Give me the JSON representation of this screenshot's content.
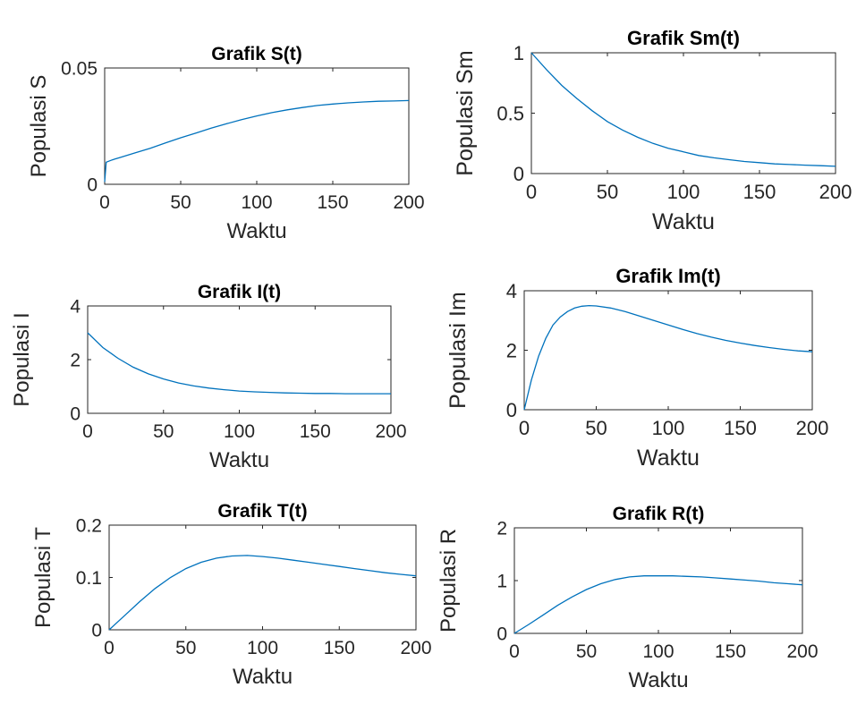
{
  "line_color": "#0072bd",
  "chart_data": [
    {
      "type": "line",
      "title": "Grafik S(t)",
      "xlabel": "Waktu",
      "ylabel": "Populasi S",
      "xlim": [
        0,
        200
      ],
      "ylim": [
        0,
        0.05
      ],
      "xticks": [
        0,
        50,
        100,
        150,
        200
      ],
      "xtick_labels": [
        "0",
        "50",
        "100",
        "150",
        "200"
      ],
      "yticks": [
        0,
        0.05
      ],
      "ytick_labels": [
        "0",
        "0.05"
      ],
      "series": [
        {
          "x": [
            0,
            1,
            5,
            10,
            20,
            30,
            40,
            50,
            60,
            70,
            80,
            90,
            100,
            110,
            120,
            130,
            140,
            150,
            160,
            170,
            180,
            190,
            200
          ],
          "values": [
            0.001,
            0.0095,
            0.0105,
            0.0115,
            0.0135,
            0.0155,
            0.0178,
            0.02,
            0.022,
            0.0241,
            0.026,
            0.0278,
            0.0294,
            0.0308,
            0.032,
            0.033,
            0.0339,
            0.0345,
            0.035,
            0.0354,
            0.0357,
            0.0358,
            0.036
          ]
        }
      ]
    },
    {
      "type": "line",
      "title": "Grafik Sm(t)",
      "xlabel": "Waktu",
      "ylabel": "Populasi Sm",
      "xlim": [
        0,
        200
      ],
      "ylim": [
        0,
        1
      ],
      "xticks": [
        0,
        50,
        100,
        150,
        200
      ],
      "xtick_labels": [
        "0",
        "50",
        "100",
        "150",
        "200"
      ],
      "yticks": [
        0,
        0.5,
        1
      ],
      "ytick_labels": [
        "0",
        "0.5",
        "1"
      ],
      "series": [
        {
          "x": [
            0,
            10,
            20,
            30,
            40,
            50,
            60,
            70,
            80,
            90,
            100,
            110,
            120,
            130,
            140,
            150,
            160,
            170,
            180,
            190,
            200
          ],
          "values": [
            1,
            0.86,
            0.73,
            0.62,
            0.52,
            0.43,
            0.36,
            0.3,
            0.25,
            0.21,
            0.18,
            0.15,
            0.13,
            0.115,
            0.1,
            0.09,
            0.08,
            0.075,
            0.07,
            0.065,
            0.06
          ]
        }
      ]
    },
    {
      "type": "line",
      "title": "Grafik I(t)",
      "xlabel": "Waktu",
      "ylabel": "Populasi I",
      "xlim": [
        0,
        200
      ],
      "ylim": [
        0,
        4
      ],
      "xticks": [
        0,
        50,
        100,
        150,
        200
      ],
      "xtick_labels": [
        "0",
        "50",
        "100",
        "150",
        "200"
      ],
      "yticks": [
        0,
        2,
        4
      ],
      "ytick_labels": [
        "0",
        "2",
        "4"
      ],
      "series": [
        {
          "x": [
            0,
            10,
            20,
            30,
            40,
            50,
            60,
            70,
            80,
            90,
            100,
            110,
            120,
            130,
            140,
            150,
            160,
            170,
            180,
            190,
            200
          ],
          "values": [
            3,
            2.45,
            2.05,
            1.72,
            1.47,
            1.28,
            1.13,
            1.02,
            0.94,
            0.88,
            0.83,
            0.8,
            0.78,
            0.76,
            0.75,
            0.74,
            0.74,
            0.73,
            0.73,
            0.73,
            0.73
          ]
        }
      ]
    },
    {
      "type": "line",
      "title": "Grafik Im(t)",
      "xlabel": "Waktu",
      "ylabel": "Populasi Im",
      "xlim": [
        0,
        200
      ],
      "ylim": [
        0,
        4
      ],
      "xticks": [
        0,
        50,
        100,
        150,
        200
      ],
      "xtick_labels": [
        "0",
        "50",
        "100",
        "150",
        "200"
      ],
      "yticks": [
        0,
        2,
        4
      ],
      "ytick_labels": [
        "0",
        "2",
        "4"
      ],
      "series": [
        {
          "x": [
            0,
            5,
            10,
            15,
            20,
            25,
            30,
            35,
            40,
            45,
            50,
            60,
            70,
            80,
            90,
            100,
            110,
            120,
            130,
            140,
            150,
            160,
            170,
            180,
            190,
            200
          ],
          "values": [
            0,
            1.0,
            1.8,
            2.4,
            2.85,
            3.12,
            3.3,
            3.42,
            3.48,
            3.5,
            3.49,
            3.42,
            3.3,
            3.15,
            3.0,
            2.85,
            2.7,
            2.56,
            2.44,
            2.33,
            2.24,
            2.16,
            2.09,
            2.03,
            1.98,
            1.95
          ]
        }
      ]
    },
    {
      "type": "line",
      "title": "Grafik T(t)",
      "xlabel": "Waktu",
      "ylabel": "Populasi T",
      "xlim": [
        0,
        200
      ],
      "ylim": [
        0,
        0.2
      ],
      "xticks": [
        0,
        50,
        100,
        150,
        200
      ],
      "xtick_labels": [
        "0",
        "50",
        "100",
        "150",
        "200"
      ],
      "yticks": [
        0,
        0.1,
        0.2
      ],
      "ytick_labels": [
        "0",
        "0.1",
        "0.2"
      ],
      "series": [
        {
          "x": [
            0,
            10,
            20,
            30,
            40,
            50,
            60,
            70,
            80,
            90,
            100,
            110,
            120,
            130,
            140,
            150,
            160,
            170,
            180,
            190,
            200
          ],
          "values": [
            0,
            0.027,
            0.054,
            0.079,
            0.1,
            0.117,
            0.129,
            0.137,
            0.141,
            0.142,
            0.14,
            0.137,
            0.133,
            0.129,
            0.125,
            0.121,
            0.117,
            0.113,
            0.109,
            0.106,
            0.103
          ]
        }
      ]
    },
    {
      "type": "line",
      "title": "Grafik R(t)",
      "xlabel": "Waktu",
      "ylabel": "Populasi R",
      "xlim": [
        0,
        200
      ],
      "ylim": [
        0,
        2
      ],
      "xticks": [
        0,
        50,
        100,
        150,
        200
      ],
      "xtick_labels": [
        "0",
        "50",
        "100",
        "150",
        "200"
      ],
      "yticks": [
        0,
        1,
        2
      ],
      "ytick_labels": [
        "0",
        "1",
        "2"
      ],
      "series": [
        {
          "x": [
            0,
            10,
            20,
            30,
            40,
            50,
            60,
            70,
            80,
            90,
            100,
            110,
            120,
            130,
            140,
            150,
            160,
            170,
            180,
            190,
            200
          ],
          "values": [
            0,
            0.17,
            0.35,
            0.53,
            0.69,
            0.83,
            0.94,
            1.02,
            1.07,
            1.09,
            1.09,
            1.09,
            1.08,
            1.07,
            1.05,
            1.03,
            1.01,
            0.99,
            0.96,
            0.94,
            0.92
          ]
        }
      ]
    }
  ]
}
